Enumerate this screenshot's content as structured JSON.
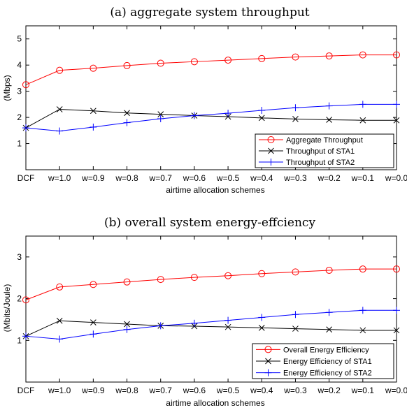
{
  "chart_data": [
    {
      "type": "line",
      "title": "(a) aggregate system throughput",
      "xlabel": "airtime allocation schemes",
      "ylabel": "(Mbps)",
      "categories": [
        "DCF",
        "w=1.0",
        "w=0.9",
        "w=0.8",
        "w=0.7",
        "w=0.6",
        "w=0.5",
        "w=0.4",
        "w=0.3",
        "w=0.2",
        "w=0.1",
        "w=0.0"
      ],
      "ylim": [
        0,
        5.5
      ],
      "yticks": [
        1,
        2,
        3,
        4,
        5
      ],
      "legend_position": "bottom-right",
      "grid": false,
      "series": [
        {
          "name": "Aggregate Throughput",
          "color": "#ff0000",
          "marker": "circle",
          "values": [
            3.25,
            3.8,
            3.88,
            3.98,
            4.07,
            4.13,
            4.19,
            4.25,
            4.31,
            4.35,
            4.39,
            4.39
          ]
        },
        {
          "name": "Throughput of STA1",
          "color": "#000000",
          "marker": "x",
          "values": [
            1.6,
            2.31,
            2.25,
            2.17,
            2.12,
            2.07,
            2.03,
            1.98,
            1.94,
            1.91,
            1.89,
            1.89
          ]
        },
        {
          "name": "Throughput of STA2",
          "color": "#0000ff",
          "marker": "plus",
          "values": [
            1.6,
            1.48,
            1.63,
            1.8,
            1.95,
            2.07,
            2.16,
            2.27,
            2.37,
            2.44,
            2.5,
            2.5
          ]
        }
      ]
    },
    {
      "type": "line",
      "title": "(b) overall system energy-effciency",
      "xlabel": "airtime allocation schemes",
      "ylabel": "(Mbits/Joule)",
      "categories": [
        "DCF",
        "w=1.0",
        "w=0.9",
        "w=0.8",
        "w=0.7",
        "w=0.6",
        "w=0.5",
        "w=0.4",
        "w=0.3",
        "w=0.2",
        "w=0.1",
        "w=0.0"
      ],
      "ylim": [
        0,
        3.5
      ],
      "yticks": [
        1,
        2,
        3
      ],
      "legend_position": "bottom-right",
      "grid": false,
      "series": [
        {
          "name": "Overall Energy Efficiency",
          "color": "#ff0000",
          "marker": "circle",
          "values": [
            1.97,
            2.28,
            2.34,
            2.4,
            2.46,
            2.51,
            2.55,
            2.6,
            2.64,
            2.68,
            2.71,
            2.71
          ]
        },
        {
          "name": "Energy Efficiency of STA1",
          "color": "#000000",
          "marker": "x",
          "values": [
            1.1,
            1.47,
            1.43,
            1.39,
            1.35,
            1.34,
            1.32,
            1.3,
            1.28,
            1.26,
            1.24,
            1.24
          ]
        },
        {
          "name": "Energy Efficiency of STA2",
          "color": "#0000ff",
          "marker": "plus",
          "values": [
            1.1,
            1.03,
            1.15,
            1.26,
            1.35,
            1.41,
            1.48,
            1.55,
            1.62,
            1.67,
            1.72,
            1.72
          ]
        }
      ]
    }
  ]
}
